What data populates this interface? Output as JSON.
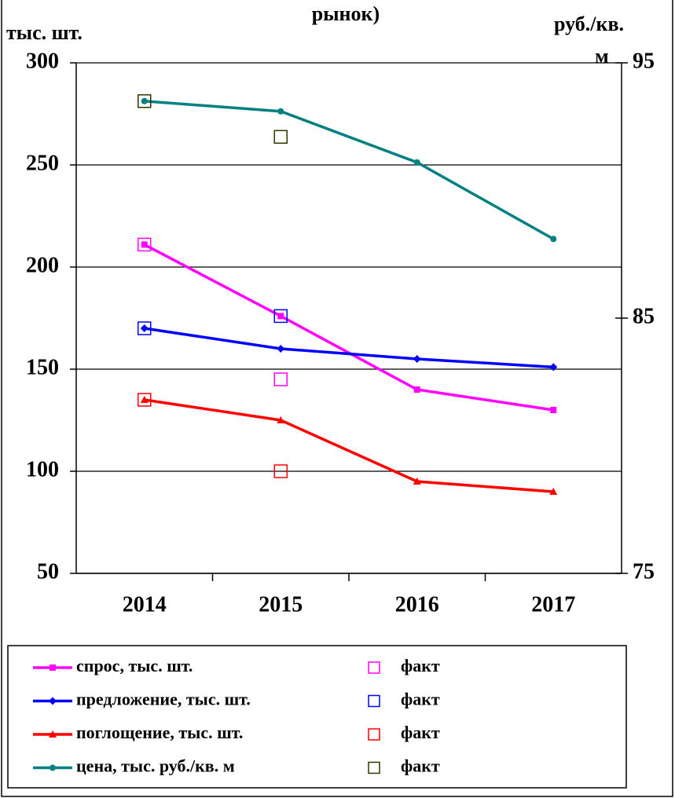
{
  "chart_data": {
    "type": "line",
    "title": "рынок)",
    "ylabel": "тыс. шт.",
    "y2label_lines": [
      "руб./кв.",
      "м"
    ],
    "categories": [
      "2014",
      "2015",
      "2016",
      "2017"
    ],
    "ylim": [
      50,
      300
    ],
    "yticks": [
      50,
      100,
      150,
      200,
      250,
      300
    ],
    "y2lim": [
      75,
      95
    ],
    "y2ticks": [
      75,
      85,
      95
    ],
    "grid": true,
    "series": [
      {
        "name": "спрос, тыс. шт.",
        "color": "#ff00ff",
        "marker": "square",
        "line": true,
        "values": [
          211,
          176,
          140,
          130
        ]
      },
      {
        "name": "предложение, тыс. шт.",
        "color": "#0000ff",
        "marker": "diamond",
        "line": true,
        "values": [
          170,
          160,
          155,
          151
        ]
      },
      {
        "name": "поглощение, тыс. шт.",
        "color": "#ff0000",
        "marker": "triangle",
        "line": true,
        "values": [
          135,
          125,
          95,
          90
        ]
      },
      {
        "name": "цена, тыс. руб./кв. м",
        "color": "#008080",
        "marker": "circle",
        "line": true,
        "axis": "y2",
        "values": [
          93.5,
          93.1,
          91.1,
          88.1
        ]
      },
      {
        "name": "факт",
        "color": "#ff00ff",
        "marker": "open-square",
        "line": false,
        "values": [
          211,
          145,
          null,
          null
        ]
      },
      {
        "name": "факт",
        "color": "#0000ff",
        "marker": "open-square",
        "line": false,
        "values": [
          170,
          176,
          null,
          null
        ]
      },
      {
        "name": "факт",
        "color": "#ff0000",
        "marker": "open-square",
        "line": false,
        "values": [
          135,
          100,
          null,
          null
        ]
      },
      {
        "name": "факт",
        "color": "#333300",
        "marker": "open-square",
        "line": false,
        "axis": "y2",
        "values": [
          93.5,
          92.1,
          null,
          null
        ]
      }
    ]
  }
}
